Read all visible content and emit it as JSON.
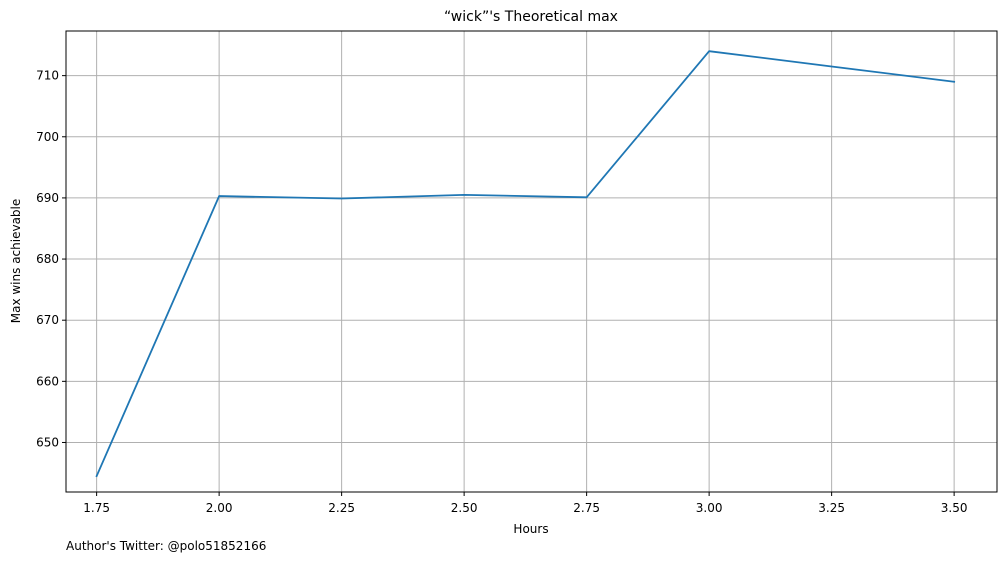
{
  "chart_data": {
    "type": "line",
    "title": "“wick”'s Theoretical max",
    "xlabel": "Hours",
    "ylabel": "Max wins achievable",
    "x": [
      1.75,
      2.0,
      2.25,
      2.5,
      2.75,
      3.0,
      3.25,
      3.5
    ],
    "series": [
      {
        "values": [
          644.5,
          690.3,
          689.9,
          690.5,
          690.1,
          714.0,
          711.5,
          709.0
        ]
      }
    ],
    "xlim": [
      1.6875,
      3.5875
    ],
    "ylim": [
      641.9,
      717.3
    ],
    "x_ticks": [
      1.75,
      2.0,
      2.25,
      2.5,
      2.75,
      3.0,
      3.25,
      3.5
    ],
    "x_tick_labels": [
      "1.75",
      "2.00",
      "2.25",
      "2.50",
      "2.75",
      "3.00",
      "3.25",
      "3.50"
    ],
    "y_ticks": [
      650,
      660,
      670,
      680,
      690,
      700,
      710
    ],
    "y_tick_labels": [
      "650",
      "660",
      "670",
      "680",
      "690",
      "700",
      "710"
    ],
    "grid": true,
    "line_color": "#1f77b4",
    "grid_color": "#b0b0b0"
  },
  "footer": {
    "author_text": "Author's Twitter: @polo51852166"
  }
}
